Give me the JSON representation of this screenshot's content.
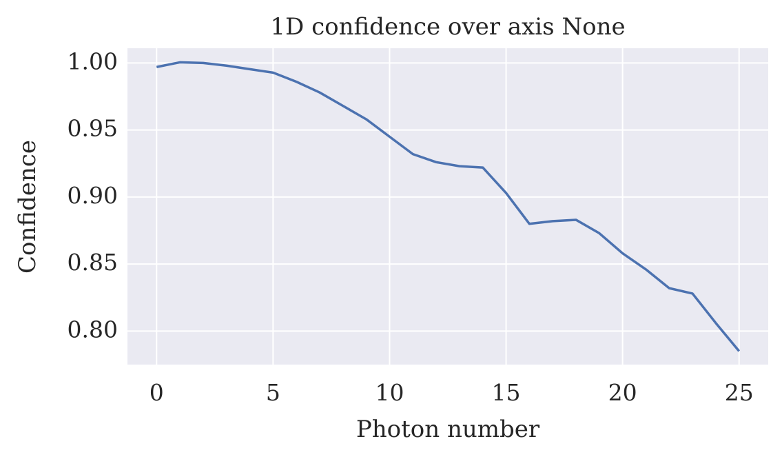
{
  "chart_data": {
    "type": "line",
    "title": "1D confidence over axis None",
    "x_label": "Photon number",
    "y_label": "Confidence",
    "x": [
      0,
      1,
      2,
      3,
      4,
      5,
      6,
      7,
      8,
      9,
      10,
      11,
      12,
      13,
      14,
      15,
      16,
      17,
      18,
      19,
      20,
      21,
      22,
      23,
      24,
      25
    ],
    "series": [
      {
        "color": "#4c72b0",
        "values": [
          0.997,
          1.0005,
          1.0,
          0.998,
          0.9954,
          0.9928,
          0.986,
          0.978,
          0.968,
          0.958,
          0.945,
          0.932,
          0.926,
          0.923,
          0.922,
          0.903,
          0.88,
          0.882,
          0.883,
          0.873,
          0.858,
          0.846,
          0.832,
          0.828,
          0.806,
          0.785
        ]
      }
    ],
    "xlim": [
      -1.25,
      26.25
    ],
    "ylim": [
      0.775,
      1.011
    ],
    "xticks": [
      0,
      5,
      10,
      15,
      20,
      25
    ],
    "yticks": [
      {
        "value": 0.8,
        "label": "0.80"
      },
      {
        "value": 0.85,
        "label": "0.85"
      },
      {
        "value": 0.9,
        "label": "0.90"
      },
      {
        "value": 0.95,
        "label": "0.95"
      },
      {
        "value": 1.0,
        "label": "1.00"
      }
    ],
    "grid": true
  }
}
